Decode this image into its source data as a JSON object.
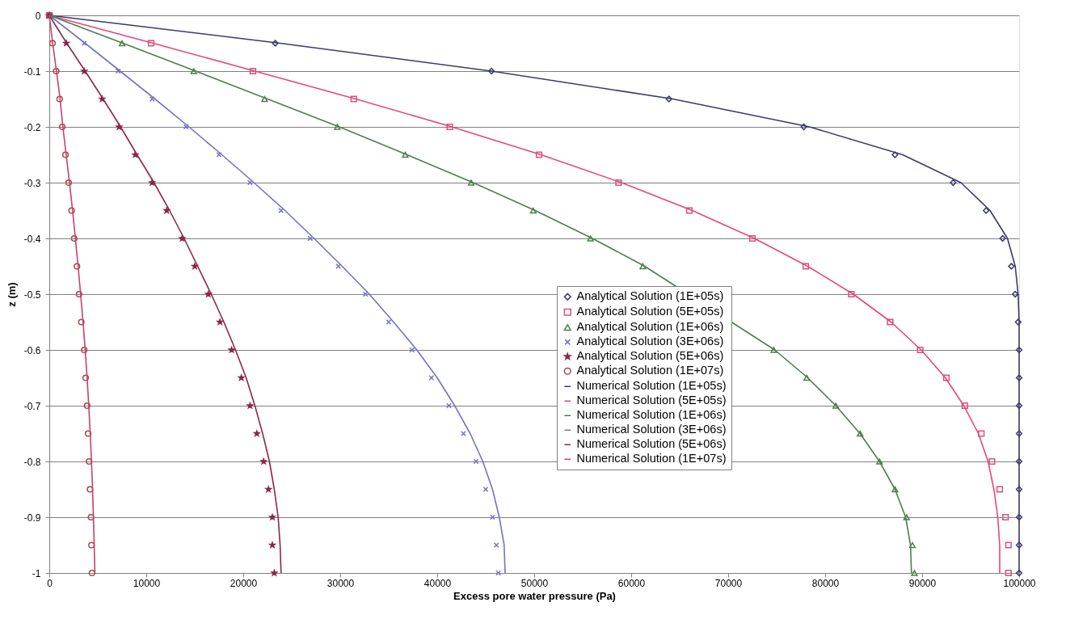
{
  "chart_data": {
    "type": "scatter",
    "xlabel": "Excess pore water pressure (Pa)",
    "ylabel": "z (m)",
    "xlim": [
      0,
      100000
    ],
    "xticks": [
      0,
      10000,
      20000,
      30000,
      40000,
      50000,
      60000,
      70000,
      80000,
      90000,
      100000
    ],
    "ylim": [
      -1,
      0
    ],
    "yticks": [
      0,
      -0.1,
      -0.2,
      -0.3,
      -0.4,
      -0.5,
      -0.6,
      -0.7,
      -0.8,
      -0.9,
      -1
    ],
    "grid": "y",
    "legend": "bottom right",
    "series": [
      {
        "name": "Analytical Solution (1E+05s)",
        "marker": "diamond",
        "color": "#3b3b6b",
        "x": [
          0,
          23300,
          45600,
          63900,
          77800,
          87200,
          93200,
          96600,
          98300,
          99200,
          99600,
          99900,
          100000,
          100000,
          100000,
          100000,
          100000,
          100000,
          100000,
          100000,
          100000
        ],
        "values": [
          0,
          -0.05,
          -0.1,
          -0.15,
          -0.2,
          -0.25,
          -0.3,
          -0.35,
          -0.4,
          -0.45,
          -0.5,
          -0.55,
          -0.6,
          -0.65,
          -0.7,
          -0.75,
          -0.8,
          -0.85,
          -0.9,
          -0.95,
          -1
        ]
      },
      {
        "name": "Analytical Solution (5E+05s)",
        "marker": "square",
        "color": "#d9507e",
        "x": [
          0,
          10500,
          21000,
          31400,
          41300,
          50500,
          58700,
          66000,
          72500,
          78000,
          82700,
          86700,
          89800,
          92500,
          94400,
          96100,
          97200,
          98000,
          98600,
          98900,
          98900
        ],
        "values": [
          0,
          -0.05,
          -0.1,
          -0.15,
          -0.2,
          -0.25,
          -0.3,
          -0.35,
          -0.4,
          -0.45,
          -0.5,
          -0.55,
          -0.6,
          -0.65,
          -0.7,
          -0.75,
          -0.8,
          -0.85,
          -0.9,
          -0.95,
          -1
        ]
      },
      {
        "name": "Analytical Solution (1E+06s)",
        "marker": "triangle",
        "color": "#4f7d4f",
        "x": [
          0,
          7500,
          14900,
          22200,
          29700,
          36700,
          43500,
          49900,
          55800,
          61200,
          74700,
          78100,
          81100,
          83600,
          85600,
          87200,
          88400,
          89000,
          89200
        ],
        "values": [
          0,
          -0.05,
          -0.1,
          -0.15,
          -0.2,
          -0.25,
          -0.3,
          -0.35,
          -0.4,
          -0.45,
          -0.6,
          -0.65,
          -0.7,
          -0.75,
          -0.8,
          -0.85,
          -0.9,
          -0.95,
          -1
        ]
      },
      {
        "name": "Analytical Solution (3E+06s)",
        "marker": "cross",
        "color": "#7373c4",
        "x": [
          0,
          3600,
          7100,
          10600,
          14100,
          17500,
          20700,
          23900,
          26900,
          29800,
          32600,
          35000,
          37400,
          39400,
          41200,
          42700,
          44000,
          45000,
          45700,
          46100,
          46300
        ],
        "values": [
          0,
          -0.05,
          -0.1,
          -0.15,
          -0.2,
          -0.25,
          -0.3,
          -0.35,
          -0.4,
          -0.45,
          -0.5,
          -0.55,
          -0.6,
          -0.65,
          -0.7,
          -0.75,
          -0.8,
          -0.85,
          -0.9,
          -0.95,
          -1
        ]
      },
      {
        "name": "Analytical Solution (5E+06s)",
        "marker": "star",
        "color": "#8b2845",
        "x": [
          0,
          1750,
          3600,
          5450,
          7200,
          8870,
          10600,
          12100,
          13700,
          15000,
          16400,
          17600,
          18800,
          19800,
          20700,
          21400,
          22100,
          22600,
          23000,
          23000,
          23200
        ],
        "values": [
          0,
          -0.05,
          -0.1,
          -0.15,
          -0.2,
          -0.25,
          -0.3,
          -0.35,
          -0.4,
          -0.45,
          -0.5,
          -0.55,
          -0.6,
          -0.65,
          -0.7,
          -0.75,
          -0.8,
          -0.85,
          -0.9,
          -0.95,
          -1
        ]
      },
      {
        "name": "Analytical Solution (1E+07s)",
        "marker": "circle",
        "color": "#a04a4a",
        "x": [
          0,
          330,
          710,
          1070,
          1340,
          1670,
          2000,
          2300,
          2570,
          2850,
          3070,
          3300,
          3600,
          3750,
          3900,
          4000,
          4100,
          4200,
          4300,
          4350,
          4400
        ],
        "values": [
          0,
          -0.05,
          -0.1,
          -0.15,
          -0.2,
          -0.25,
          -0.3,
          -0.35,
          -0.4,
          -0.45,
          -0.5,
          -0.55,
          -0.6,
          -0.65,
          -0.7,
          -0.75,
          -0.8,
          -0.85,
          -0.9,
          -0.95,
          -1
        ]
      },
      {
        "name": "Numerical Solution (1E+05s)",
        "type": "line",
        "marker": "none",
        "color": "#3b3b6b",
        "x": [
          0,
          23800,
          45600,
          64300,
          78400,
          88000,
          94000,
          97000,
          98800,
          99600,
          99900,
          100000,
          100000,
          100000,
          100000,
          100000,
          100000,
          100000,
          100000,
          100000,
          100000
        ],
        "values": [
          0,
          -0.05,
          -0.1,
          -0.15,
          -0.2,
          -0.25,
          -0.3,
          -0.35,
          -0.4,
          -0.45,
          -0.5,
          -0.55,
          -0.6,
          -0.65,
          -0.7,
          -0.75,
          -0.8,
          -0.85,
          -0.9,
          -0.95,
          -1
        ]
      },
      {
        "name": "Numerical Solution (5E+05s)",
        "type": "line",
        "marker": "none",
        "color": "#e8457c",
        "x": [
          0,
          10700,
          21200,
          31600,
          41500,
          50700,
          59000,
          66300,
          72700,
          78200,
          82900,
          86800,
          89900,
          92400,
          94300,
          95800,
          96800,
          97400,
          97800,
          98000,
          98000
        ],
        "values": [
          0,
          -0.05,
          -0.1,
          -0.15,
          -0.2,
          -0.25,
          -0.3,
          -0.35,
          -0.4,
          -0.45,
          -0.5,
          -0.55,
          -0.6,
          -0.65,
          -0.7,
          -0.75,
          -0.8,
          -0.85,
          -0.9,
          -0.95,
          -1
        ]
      },
      {
        "name": "Numerical Solution (1E+06s)",
        "type": "line",
        "marker": "none",
        "color": "#4f7d4f",
        "x": [
          0,
          7600,
          15100,
          22500,
          29900,
          36900,
          43700,
          50100,
          56000,
          61400,
          74800,
          78200,
          81100,
          83600,
          85600,
          87200,
          88300,
          88800,
          88900
        ],
        "values": [
          0,
          -0.05,
          -0.1,
          -0.15,
          -0.2,
          -0.25,
          -0.3,
          -0.35,
          -0.4,
          -0.45,
          -0.6,
          -0.65,
          -0.7,
          -0.75,
          -0.8,
          -0.85,
          -0.9,
          -0.95,
          -1
        ]
      },
      {
        "name": "Numerical Solution (3E+06s)",
        "type": "line",
        "marker": "none",
        "color": "#7373c4",
        "x": [
          0,
          3700,
          7300,
          10900,
          14400,
          17800,
          21100,
          24300,
          27300,
          30200,
          33000,
          35500,
          37900,
          40000,
          41800,
          43400,
          44700,
          45700,
          46400,
          46900,
          47000
        ],
        "values": [
          0,
          -0.05,
          -0.1,
          -0.15,
          -0.2,
          -0.25,
          -0.3,
          -0.35,
          -0.4,
          -0.45,
          -0.5,
          -0.55,
          -0.6,
          -0.65,
          -0.7,
          -0.75,
          -0.8,
          -0.85,
          -0.9,
          -0.95,
          -1
        ]
      },
      {
        "name": "Numerical Solution (5E+06s)",
        "type": "line",
        "marker": "none",
        "color": "#8b2845",
        "x": [
          0,
          1800,
          3700,
          5550,
          7350,
          9050,
          10800,
          12400,
          13900,
          15300,
          16700,
          18000,
          19200,
          20300,
          21200,
          22000,
          22700,
          23200,
          23600,
          23800,
          23900
        ],
        "values": [
          0,
          -0.05,
          -0.1,
          -0.15,
          -0.2,
          -0.25,
          -0.3,
          -0.35,
          -0.4,
          -0.45,
          -0.5,
          -0.55,
          -0.6,
          -0.65,
          -0.7,
          -0.75,
          -0.8,
          -0.85,
          -0.9,
          -0.95,
          -1
        ]
      },
      {
        "name": "Numerical Solution (1E+07s)",
        "type": "line",
        "marker": "none",
        "color": "#c8406a",
        "x": [
          0,
          350,
          740,
          1110,
          1400,
          1740,
          2080,
          2400,
          2690,
          2970,
          3230,
          3480,
          3700,
          3900,
          4070,
          4220,
          4350,
          4460,
          4550,
          4630,
          4700
        ],
        "values": [
          0,
          -0.05,
          -0.1,
          -0.15,
          -0.2,
          -0.25,
          -0.3,
          -0.35,
          -0.4,
          -0.45,
          -0.5,
          -0.55,
          -0.6,
          -0.65,
          -0.7,
          -0.75,
          -0.8,
          -0.85,
          -0.9,
          -0.95,
          -1
        ]
      }
    ]
  }
}
